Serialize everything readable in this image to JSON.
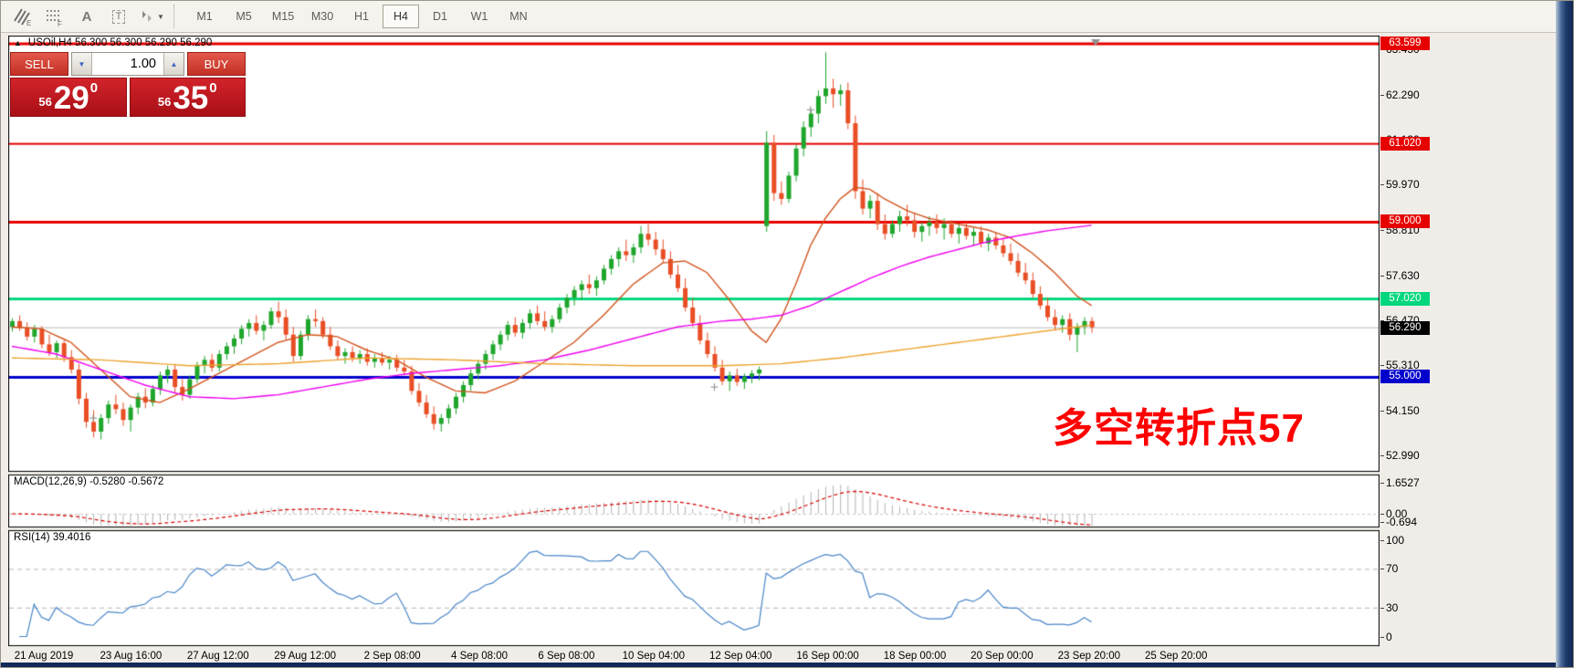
{
  "toolbar": {
    "icons": [
      "indicators-icon",
      "grid-f-icon",
      "text-label-icon",
      "text-box-icon",
      "arrange-objects-icon",
      "dropdown-caret-icon"
    ],
    "text_label_glyph": "A",
    "text_box_glyph": "T",
    "timeframes": [
      "M1",
      "M5",
      "M15",
      "M30",
      "H1",
      "H4",
      "D1",
      "W1",
      "MN"
    ],
    "active_timeframe": "H4"
  },
  "chart": {
    "symbol_header": "USOil,H4  56.300 56.300 56.290 56.290",
    "annotation": {
      "text": "多空转折点57",
      "color": "#ff0000"
    }
  },
  "trade": {
    "sell_label": "SELL",
    "buy_label": "BUY",
    "volume": "1.00",
    "sell_price_small": "56",
    "sell_price_big": "29",
    "sell_price_sup": "0",
    "buy_price_small": "56",
    "buy_price_big": "35",
    "buy_price_sup": "0"
  },
  "macd_panel": {
    "label": "MACD(12,26,9) -0.5280 -0.5672",
    "axis": [
      "1.6527",
      "0.00",
      "-0.694"
    ]
  },
  "rsi_panel": {
    "label": "RSI(14) 39.4016",
    "axis": [
      "100",
      "70",
      "30",
      "0"
    ],
    "levels": [
      70,
      30
    ],
    "line_color": "#4a86c8"
  },
  "chart_data": {
    "type": "candlestick",
    "symbol": "USOil",
    "period": "H4",
    "quote": {
      "open": "56.300",
      "high": "56.300",
      "low": "56.290",
      "close": "56.290"
    },
    "current_price": {
      "price": 56.29,
      "label": "56.290",
      "line_color": "#bcbcbc",
      "tag_bg": "#000000"
    },
    "candle_up_color": "#1fa62c",
    "candle_down_color": "#e94e25",
    "y_ticks": [
      63.45,
      62.29,
      61.13,
      59.97,
      58.81,
      57.63,
      56.47,
      55.31,
      54.15,
      52.99
    ],
    "levels": [
      {
        "price": 63.599,
        "label": "63.599",
        "color": "#e60000",
        "width": 3
      },
      {
        "price": 61.02,
        "label": "61.020",
        "color": "#e60000",
        "width": 2
      },
      {
        "price": 59.0,
        "label": "59.000",
        "color": "#e60000",
        "width": 3
      },
      {
        "price": 57.02,
        "label": "57.020",
        "color": "#00d77d",
        "width": 3
      },
      {
        "price": 55.0,
        "label": "55.000",
        "color": "#0000cc",
        "width": 3
      }
    ],
    "x_labels": [
      "21 Aug 2019",
      "23 Aug 16:00",
      "27 Aug 12:00",
      "29 Aug 12:00",
      "2 Sep 08:00",
      "4 Sep 08:00",
      "6 Sep 08:00",
      "10 Sep 04:00",
      "12 Sep 04:00",
      "16 Sep 00:00",
      "18 Sep 00:00",
      "20 Sep 00:00",
      "23 Sep 20:00",
      "25 Sep 20:00"
    ],
    "candles": [
      [
        56.3,
        56.52,
        56.18,
        56.45
      ],
      [
        56.45,
        56.6,
        56.2,
        56.28
      ],
      [
        56.28,
        56.42,
        55.95,
        56.05
      ],
      [
        56.05,
        56.35,
        55.9,
        56.25
      ],
      [
        56.25,
        56.32,
        55.75,
        55.85
      ],
      [
        55.85,
        56.1,
        55.55,
        55.65
      ],
      [
        55.65,
        55.95,
        55.5,
        55.88
      ],
      [
        55.88,
        55.95,
        55.4,
        55.52
      ],
      [
        55.52,
        55.7,
        55.1,
        55.2
      ],
      [
        55.2,
        55.35,
        54.3,
        54.45
      ],
      [
        54.45,
        54.6,
        53.7,
        53.85
      ],
      [
        53.85,
        54.15,
        53.45,
        53.6
      ],
      [
        53.6,
        54.05,
        53.4,
        53.95
      ],
      [
        53.95,
        54.4,
        53.8,
        54.3
      ],
      [
        54.3,
        54.55,
        54.05,
        54.18
      ],
      [
        54.18,
        54.35,
        53.75,
        53.9
      ],
      [
        53.9,
        54.3,
        53.6,
        54.22
      ],
      [
        54.22,
        54.6,
        54.05,
        54.5
      ],
      [
        54.5,
        54.72,
        54.2,
        54.35
      ],
      [
        54.35,
        54.8,
        54.25,
        54.7
      ],
      [
        54.7,
        55.15,
        54.55,
        55.05
      ],
      [
        55.05,
        55.3,
        54.85,
        55.2
      ],
      [
        55.2,
        55.35,
        54.6,
        54.75
      ],
      [
        54.75,
        54.95,
        54.4,
        54.55
      ],
      [
        54.55,
        55.05,
        54.45,
        54.95
      ],
      [
        54.95,
        55.4,
        54.85,
        55.3
      ],
      [
        55.3,
        55.55,
        55.1,
        55.45
      ],
      [
        55.45,
        55.6,
        55.15,
        55.25
      ],
      [
        55.25,
        55.7,
        55.15,
        55.6
      ],
      [
        55.6,
        55.9,
        55.45,
        55.8
      ],
      [
        55.8,
        56.1,
        55.6,
        56.0
      ],
      [
        56.0,
        56.35,
        55.85,
        56.25
      ],
      [
        56.25,
        56.5,
        56.05,
        56.4
      ],
      [
        56.4,
        56.6,
        56.1,
        56.2
      ],
      [
        56.2,
        56.45,
        55.95,
        56.35
      ],
      [
        56.35,
        56.8,
        56.25,
        56.7
      ],
      [
        56.7,
        56.95,
        56.4,
        56.55
      ],
      [
        56.55,
        56.75,
        55.95,
        56.1
      ],
      [
        56.1,
        56.3,
        55.4,
        55.55
      ],
      [
        55.55,
        56.2,
        55.45,
        56.1
      ],
      [
        56.1,
        56.6,
        55.95,
        56.5
      ],
      [
        56.5,
        56.75,
        56.3,
        56.45
      ],
      [
        56.45,
        56.55,
        56.0,
        56.1
      ],
      [
        56.1,
        56.3,
        55.7,
        55.8
      ],
      [
        55.8,
        55.95,
        55.45,
        55.55
      ],
      [
        55.55,
        55.75,
        55.35,
        55.65
      ],
      [
        55.65,
        55.8,
        55.4,
        55.5
      ],
      [
        55.5,
        55.7,
        55.35,
        55.6
      ],
      [
        55.6,
        55.75,
        55.3,
        55.4
      ],
      [
        55.4,
        55.6,
        55.25,
        55.5
      ],
      [
        55.5,
        55.65,
        55.3,
        55.38
      ],
      [
        55.38,
        55.55,
        55.2,
        55.45
      ],
      [
        55.45,
        55.58,
        55.15,
        55.25
      ],
      [
        55.25,
        55.45,
        55.05,
        55.15
      ],
      [
        55.15,
        55.3,
        54.55,
        54.65
      ],
      [
        54.65,
        54.85,
        54.25,
        54.35
      ],
      [
        54.35,
        54.55,
        53.95,
        54.05
      ],
      [
        54.05,
        54.25,
        53.65,
        53.8
      ],
      [
        53.8,
        54.05,
        53.6,
        53.95
      ],
      [
        53.95,
        54.3,
        53.8,
        54.2
      ],
      [
        54.2,
        54.6,
        54.05,
        54.5
      ],
      [
        54.5,
        54.9,
        54.35,
        54.8
      ],
      [
        54.8,
        55.2,
        54.65,
        55.1
      ],
      [
        55.1,
        55.45,
        54.95,
        55.35
      ],
      [
        55.35,
        55.7,
        55.2,
        55.6
      ],
      [
        55.6,
        55.95,
        55.45,
        55.85
      ],
      [
        55.85,
        56.2,
        55.7,
        56.1
      ],
      [
        56.1,
        56.45,
        55.95,
        56.35
      ],
      [
        56.35,
        56.55,
        56.05,
        56.15
      ],
      [
        56.15,
        56.5,
        56.0,
        56.4
      ],
      [
        56.4,
        56.75,
        56.25,
        56.65
      ],
      [
        56.65,
        56.85,
        56.35,
        56.45
      ],
      [
        56.45,
        56.7,
        56.2,
        56.3
      ],
      [
        56.3,
        56.6,
        56.15,
        56.5
      ],
      [
        56.5,
        56.9,
        56.4,
        56.8
      ],
      [
        56.8,
        57.15,
        56.65,
        57.05
      ],
      [
        57.05,
        57.35,
        56.85,
        57.25
      ],
      [
        57.25,
        57.5,
        57.0,
        57.4
      ],
      [
        57.4,
        57.65,
        57.15,
        57.3
      ],
      [
        57.3,
        57.6,
        57.1,
        57.5
      ],
      [
        57.5,
        57.9,
        57.4,
        57.8
      ],
      [
        57.8,
        58.15,
        57.65,
        58.05
      ],
      [
        58.05,
        58.35,
        57.85,
        58.25
      ],
      [
        58.25,
        58.55,
        58.0,
        58.15
      ],
      [
        58.15,
        58.45,
        57.95,
        58.35
      ],
      [
        58.35,
        58.9,
        58.2,
        58.7
      ],
      [
        58.7,
        58.95,
        58.4,
        58.55
      ],
      [
        58.55,
        58.75,
        58.15,
        58.3
      ],
      [
        58.3,
        58.55,
        57.95,
        58.05
      ],
      [
        58.05,
        58.25,
        57.55,
        57.65
      ],
      [
        57.65,
        57.9,
        57.2,
        57.3
      ],
      [
        57.3,
        57.55,
        56.7,
        56.8
      ],
      [
        56.8,
        57.05,
        56.3,
        56.4
      ],
      [
        56.4,
        56.6,
        55.85,
        55.95
      ],
      [
        55.95,
        56.15,
        55.5,
        55.6
      ],
      [
        55.6,
        55.8,
        55.15,
        55.25
      ],
      [
        55.25,
        55.45,
        54.8,
        54.9
      ],
      [
        54.9,
        55.15,
        54.65,
        55.05
      ],
      [
        55.05,
        55.22,
        54.78,
        54.88
      ],
      [
        54.88,
        55.1,
        54.7,
        55.02
      ],
      [
        55.02,
        55.18,
        54.85,
        55.1
      ],
      [
        55.1,
        55.28,
        54.92,
        55.2
      ],
      [
        58.9,
        61.35,
        58.75,
        61.05
      ],
      [
        61.05,
        61.25,
        59.55,
        59.75
      ],
      [
        59.75,
        60.05,
        59.45,
        59.6
      ],
      [
        59.6,
        60.3,
        59.5,
        60.2
      ],
      [
        60.2,
        61.0,
        60.05,
        60.9
      ],
      [
        60.9,
        61.6,
        60.7,
        61.45
      ],
      [
        61.45,
        61.9,
        61.2,
        61.8
      ],
      [
        61.8,
        62.4,
        61.55,
        62.25
      ],
      [
        62.25,
        63.38,
        62.05,
        62.45
      ],
      [
        62.45,
        62.7,
        61.95,
        62.3
      ],
      [
        62.3,
        62.55,
        62.0,
        62.4
      ],
      [
        62.4,
        62.6,
        61.4,
        61.55
      ],
      [
        61.55,
        61.75,
        59.6,
        59.8
      ],
      [
        59.8,
        60.1,
        59.2,
        59.35
      ],
      [
        59.35,
        59.7,
        59.1,
        59.55
      ],
      [
        59.55,
        59.75,
        58.8,
        58.95
      ],
      [
        58.95,
        59.2,
        58.55,
        58.7
      ],
      [
        58.7,
        59.05,
        58.6,
        58.95
      ],
      [
        58.95,
        59.3,
        58.75,
        59.15
      ],
      [
        59.15,
        59.45,
        58.9,
        59.05
      ],
      [
        59.05,
        59.25,
        58.6,
        58.75
      ],
      [
        58.75,
        59.0,
        58.5,
        58.9
      ],
      [
        58.9,
        59.15,
        58.65,
        59.0
      ],
      [
        59.0,
        59.2,
        58.7,
        58.85
      ],
      [
        58.85,
        59.1,
        58.55,
        58.95
      ],
      [
        58.95,
        59.05,
        58.6,
        58.7
      ],
      [
        58.7,
        58.95,
        58.45,
        58.85
      ],
      [
        58.85,
        59.0,
        58.55,
        58.65
      ],
      [
        58.65,
        58.85,
        58.4,
        58.75
      ],
      [
        58.75,
        58.9,
        58.35,
        58.45
      ],
      [
        58.45,
        58.7,
        58.25,
        58.6
      ],
      [
        58.6,
        58.75,
        58.3,
        58.4
      ],
      [
        58.4,
        58.6,
        58.1,
        58.2
      ],
      [
        58.2,
        58.45,
        57.9,
        58.0
      ],
      [
        58.0,
        58.2,
        57.6,
        57.7
      ],
      [
        57.7,
        57.95,
        57.4,
        57.5
      ],
      [
        57.5,
        57.7,
        57.05,
        57.15
      ],
      [
        57.15,
        57.35,
        56.75,
        56.85
      ],
      [
        56.85,
        57.05,
        56.45,
        56.55
      ],
      [
        56.55,
        56.75,
        56.2,
        56.35
      ],
      [
        56.35,
        56.6,
        56.15,
        56.5
      ],
      [
        56.5,
        56.65,
        55.95,
        56.1
      ],
      [
        56.1,
        56.4,
        55.65,
        56.3
      ],
      [
        56.3,
        56.55,
        56.1,
        56.45
      ],
      [
        56.45,
        56.55,
        56.15,
        56.29
      ]
    ],
    "moving_averages": [
      {
        "name": "ma-fast-vermilion",
        "color": "#d2551e",
        "width": 1.4,
        "anchors": [
          [
            0,
            56.3
          ],
          [
            4,
            56.25
          ],
          [
            8,
            55.9
          ],
          [
            12,
            55.2
          ],
          [
            16,
            54.5
          ],
          [
            20,
            54.35
          ],
          [
            24,
            54.7
          ],
          [
            28,
            55.1
          ],
          [
            32,
            55.5
          ],
          [
            36,
            55.9
          ],
          [
            40,
            56.1
          ],
          [
            44,
            56.05
          ],
          [
            48,
            55.7
          ],
          [
            52,
            55.45
          ],
          [
            56,
            55.0
          ],
          [
            60,
            54.65
          ],
          [
            64,
            54.6
          ],
          [
            68,
            54.9
          ],
          [
            72,
            55.4
          ],
          [
            76,
            55.9
          ],
          [
            80,
            56.6
          ],
          [
            84,
            57.4
          ],
          [
            88,
            57.95
          ],
          [
            91,
            58.0
          ],
          [
            94,
            57.7
          ],
          [
            97,
            57.0
          ],
          [
            100,
            56.2
          ],
          [
            102,
            55.9
          ],
          [
            104,
            56.5
          ],
          [
            106,
            57.4
          ],
          [
            108,
            58.4
          ],
          [
            110,
            59.1
          ],
          [
            112,
            59.6
          ],
          [
            114,
            59.9
          ],
          [
            116,
            59.85
          ],
          [
            118,
            59.6
          ],
          [
            121,
            59.3
          ],
          [
            124,
            59.1
          ],
          [
            128,
            58.95
          ],
          [
            132,
            58.8
          ],
          [
            135,
            58.6
          ],
          [
            138,
            58.2
          ],
          [
            141,
            57.7
          ],
          [
            144,
            57.1
          ],
          [
            146,
            56.85
          ]
        ]
      },
      {
        "name": "ma-slow-magenta",
        "color": "#f000f0",
        "width": 1.4,
        "anchors": [
          [
            0,
            55.8
          ],
          [
            6,
            55.6
          ],
          [
            12,
            55.2
          ],
          [
            18,
            54.8
          ],
          [
            24,
            54.5
          ],
          [
            30,
            54.45
          ],
          [
            36,
            54.55
          ],
          [
            42,
            54.75
          ],
          [
            48,
            54.95
          ],
          [
            54,
            55.1
          ],
          [
            60,
            55.2
          ],
          [
            66,
            55.3
          ],
          [
            72,
            55.45
          ],
          [
            78,
            55.7
          ],
          [
            84,
            56.0
          ],
          [
            90,
            56.3
          ],
          [
            96,
            56.45
          ],
          [
            100,
            56.5
          ],
          [
            104,
            56.6
          ],
          [
            108,
            56.85
          ],
          [
            112,
            57.2
          ],
          [
            116,
            57.55
          ],
          [
            120,
            57.85
          ],
          [
            124,
            58.1
          ],
          [
            128,
            58.3
          ],
          [
            132,
            58.5
          ],
          [
            136,
            58.65
          ],
          [
            140,
            58.78
          ],
          [
            146,
            58.92
          ]
        ]
      },
      {
        "name": "ma-long-gold",
        "color": "#eda32e",
        "width": 1.4,
        "anchors": [
          [
            0,
            55.5
          ],
          [
            12,
            55.45
          ],
          [
            24,
            55.3
          ],
          [
            36,
            55.35
          ],
          [
            48,
            55.5
          ],
          [
            60,
            55.45
          ],
          [
            72,
            55.35
          ],
          [
            84,
            55.3
          ],
          [
            96,
            55.3
          ],
          [
            104,
            55.35
          ],
          [
            112,
            55.5
          ],
          [
            120,
            55.7
          ],
          [
            128,
            55.9
          ],
          [
            134,
            56.05
          ],
          [
            140,
            56.2
          ],
          [
            146,
            56.35
          ]
        ]
      }
    ],
    "trade_markers": [
      {
        "bar": 11,
        "price": 53.95
      },
      {
        "bar": 95,
        "price": 54.75
      },
      {
        "bar": 108,
        "price": 61.9
      }
    ],
    "macd": {
      "fast": 12,
      "slow": 26,
      "signal": 9,
      "hist_color": "#b4b4b4",
      "signal_color": "#d80000"
    },
    "rsi": {
      "period": 14
    }
  }
}
